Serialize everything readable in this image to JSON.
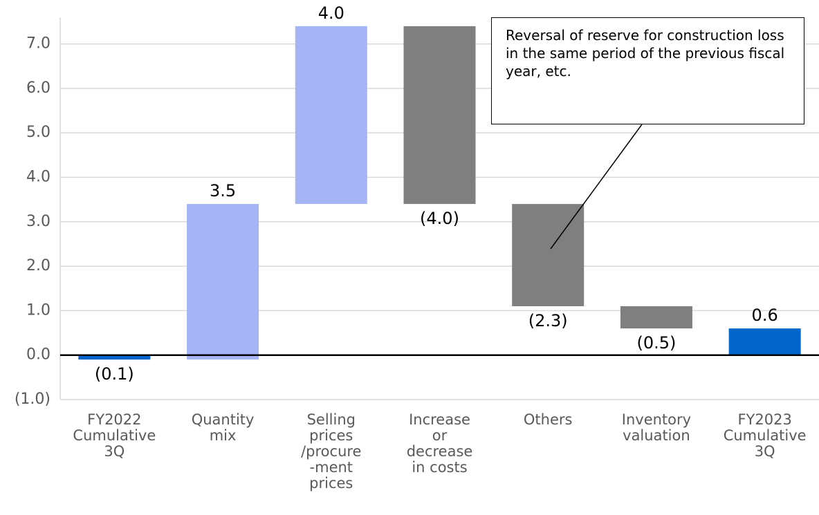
{
  "chart_data": {
    "type": "waterfall",
    "categories": [
      "FY2022\nCumulative\n3Q",
      "Quantity\nmix",
      "Selling\nprices\n/procure\n-ment\nprices",
      "Increase\nor\ndecrease\nin costs",
      "Others",
      "Inventory\nvaluation",
      "FY2023\nCumulative\n3Q"
    ],
    "values": [
      -0.1,
      3.5,
      4.0,
      -4.0,
      -2.3,
      -0.5,
      0.6
    ],
    "value_labels": [
      "(0.1)",
      "3.5",
      "4.0",
      "(4.0)",
      "(2.3)",
      "(0.5)",
      "0.6"
    ],
    "measure": [
      "total",
      "relative",
      "relative",
      "relative",
      "relative",
      "relative",
      "total"
    ],
    "colors": {
      "total": "#0066cc",
      "increase": "#a4b4f4",
      "decrease": "#7f7f7f"
    },
    "ylim": [
      -1.0,
      7.6
    ],
    "yticks": [
      {
        "value": -1.0,
        "label": "(1.0)"
      },
      {
        "value": 0,
        "label": "0.0"
      },
      {
        "value": 1,
        "label": "1.0"
      },
      {
        "value": 2,
        "label": "2.0"
      },
      {
        "value": 3,
        "label": "3.0"
      },
      {
        "value": 4,
        "label": "4.0"
      },
      {
        "value": 5,
        "label": "5.0"
      },
      {
        "value": 6,
        "label": "6.0"
      },
      {
        "value": 7,
        "label": "7.0"
      }
    ],
    "grid": true,
    "annotation": "Reversal of reserve for construction loss in the same period of the previous fiscal year, etc."
  }
}
